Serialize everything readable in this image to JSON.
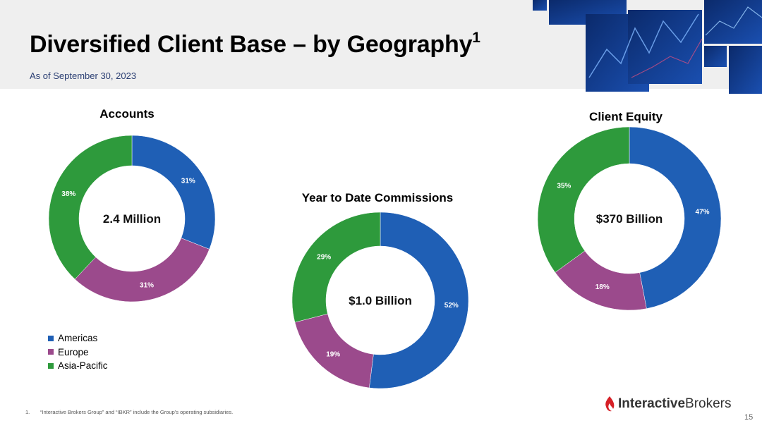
{
  "header": {
    "title": "Diversified Client Base – by Geography",
    "title_superscript": "1",
    "subtitle": "As of September 30, 2023"
  },
  "colors": {
    "americas": "#1f5fb5",
    "europe": "#9b4a8c",
    "asia_pacific": "#2e9a3c",
    "header_band": "#efefef",
    "subtitle": "#2b3f73"
  },
  "chart_data": [
    {
      "type": "pie",
      "title": "Accounts",
      "center_label": "2.4 Million",
      "categories": [
        "Americas",
        "Europe",
        "Asia-Pacific"
      ],
      "values": [
        31,
        31,
        38
      ],
      "labels": [
        "31%",
        "31%",
        "38%"
      ]
    },
    {
      "type": "pie",
      "title": "Year to Date Commissions",
      "center_label": "$1.0 Billion",
      "categories": [
        "Americas",
        "Europe",
        "Asia-Pacific"
      ],
      "values": [
        52,
        19,
        29
      ],
      "labels": [
        "52%",
        "19%",
        "29%"
      ]
    },
    {
      "type": "pie",
      "title": "Client Equity",
      "center_label": "$370 Billion",
      "categories": [
        "Americas",
        "Europe",
        "Asia-Pacific"
      ],
      "values": [
        47,
        18,
        35
      ],
      "labels": [
        "47%",
        "18%",
        "35%"
      ]
    }
  ],
  "legend": {
    "items": [
      {
        "label": "Americas",
        "color": "#1f5fb5"
      },
      {
        "label": "Europe",
        "color": "#9b4a8c"
      },
      {
        "label": "Asia-Pacific",
        "color": "#2e9a3c"
      }
    ]
  },
  "footnote": {
    "number": "1.",
    "text": "“Interactive Brokers Group” and “IBKR” include the Group’s operating subsidiaries."
  },
  "logo": {
    "part1": "Interactive",
    "part2": "Brokers"
  },
  "page_number": "15"
}
